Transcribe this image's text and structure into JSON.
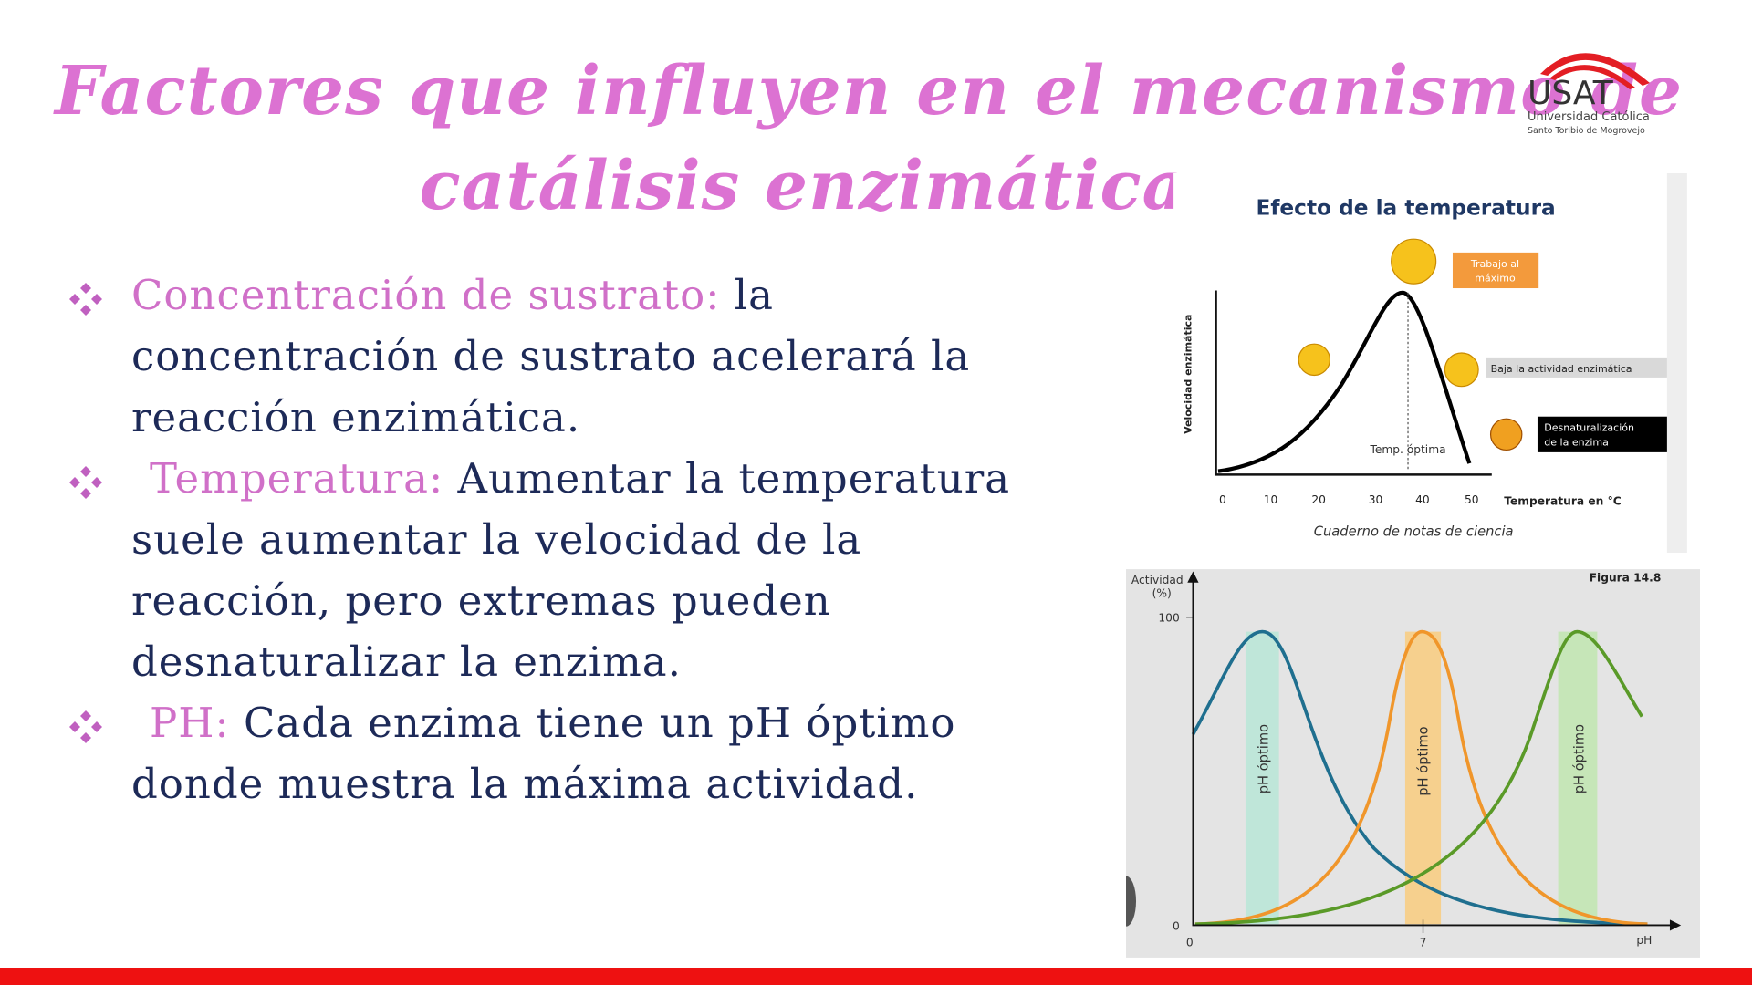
{
  "header": {
    "title_lines": [
      "Factores que influyen en el mecanismo de",
      "catálisis enzimática"
    ],
    "logo": {
      "name": "USAT",
      "line1": "Universidad Católica",
      "line2": "Santo Toribio de Mogrovejo"
    }
  },
  "bullets": [
    {
      "term": "Concentración de sustrato:",
      "text": "la concentración de sustrato acelerará la reacción enzimática."
    },
    {
      "term": "Temperatura:",
      "text": "Aumentar la temperatura suele aumentar la velocidad de la reacción, pero extremas pueden desnaturalizar la enzima."
    },
    {
      "term": "PH:",
      "text": "Cada enzima tiene un pH óptimo donde muestra la máxima actividad."
    }
  ],
  "figure_temperature": {
    "title": "Efecto de la temperatura",
    "y_label": "Velocidad enzimática",
    "x_ticks": [
      "0",
      "10",
      "20",
      "30",
      "40",
      "50"
    ],
    "x_label": "Temperatura en °C",
    "caption": "Cuaderno de notas de ciencia",
    "annotations": {
      "max": [
        "Trabajo al",
        "máximo"
      ],
      "low": "Baja la actividad enzimática",
      "denat": [
        "Desnaturalización",
        "de la enzima"
      ],
      "optimum": "Temp. óptima"
    }
  },
  "figure_ph": {
    "label": "Figura 14.8",
    "y_label": [
      "Actividad",
      "(%)"
    ],
    "y_ticks": [
      "100",
      "0"
    ],
    "x_ticks": [
      "0",
      "7"
    ],
    "x_label": "pH",
    "band_label": "pH óptimo"
  }
}
